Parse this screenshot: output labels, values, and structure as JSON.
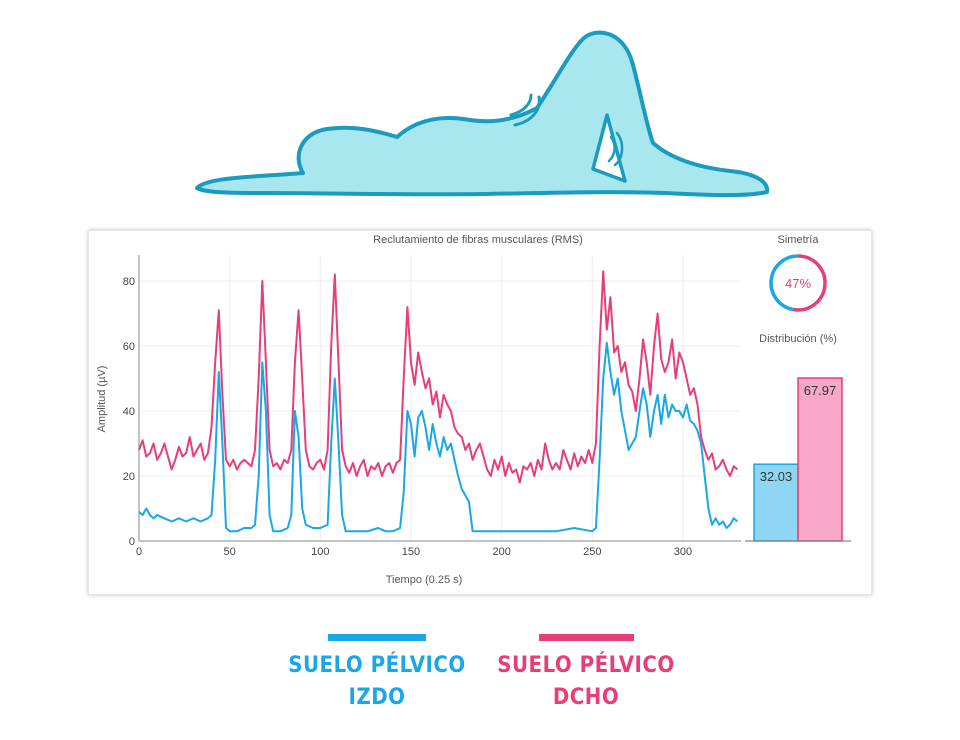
{
  "colors": {
    "left": "#1aa7e8",
    "right": "#e83e78",
    "body_fill": "#a9e7ef",
    "body_stroke": "#1a9bbf",
    "bar_left_fill": "#8fd6f5",
    "bar_right_fill": "#f7a8c6"
  },
  "legend": {
    "left": {
      "line1": "SUELO PÉLVICO",
      "line2": "IZDO"
    },
    "right": {
      "line1": "SUELO PÉLVICO",
      "line2": "DCHO"
    }
  },
  "chart_data": [
    {
      "type": "line",
      "title": "Reclutamiento de fibras musculares (RMS)",
      "xlabel": "Tiempo (0.25 s)",
      "ylabel": "Amplitud (µV)",
      "xlim": [
        0,
        332
      ],
      "ylim": [
        0,
        88
      ],
      "xticks": [
        0,
        50,
        100,
        150,
        200,
        250,
        300
      ],
      "yticks": [
        0,
        20,
        40,
        60,
        80
      ],
      "series": [
        {
          "name": "SUELO PÉLVICO IZDO",
          "color": "#1aa7e8",
          "points": [
            [
              0,
              9
            ],
            [
              2,
              8
            ],
            [
              4,
              10
            ],
            [
              6,
              8
            ],
            [
              8,
              7
            ],
            [
              10,
              8
            ],
            [
              14,
              7
            ],
            [
              18,
              6
            ],
            [
              22,
              7
            ],
            [
              26,
              6
            ],
            [
              30,
              7
            ],
            [
              34,
              6
            ],
            [
              38,
              7
            ],
            [
              40,
              8
            ],
            [
              42,
              25
            ],
            [
              44,
              52
            ],
            [
              46,
              30
            ],
            [
              48,
              4
            ],
            [
              50,
              3
            ],
            [
              54,
              3
            ],
            [
              58,
              4
            ],
            [
              62,
              4
            ],
            [
              64,
              5
            ],
            [
              66,
              20
            ],
            [
              68,
              55
            ],
            [
              70,
              40
            ],
            [
              72,
              8
            ],
            [
              74,
              3
            ],
            [
              78,
              3
            ],
            [
              82,
              4
            ],
            [
              84,
              8
            ],
            [
              86,
              40
            ],
            [
              88,
              32
            ],
            [
              90,
              10
            ],
            [
              92,
              5
            ],
            [
              96,
              4
            ],
            [
              100,
              4
            ],
            [
              104,
              5
            ],
            [
              106,
              30
            ],
            [
              108,
              50
            ],
            [
              110,
              30
            ],
            [
              112,
              8
            ],
            [
              114,
              3
            ],
            [
              120,
              3
            ],
            [
              126,
              3
            ],
            [
              132,
              4
            ],
            [
              136,
              3
            ],
            [
              140,
              3
            ],
            [
              144,
              4
            ],
            [
              146,
              15
            ],
            [
              148,
              40
            ],
            [
              150,
              36
            ],
            [
              152,
              26
            ],
            [
              154,
              38
            ],
            [
              156,
              40
            ],
            [
              158,
              35
            ],
            [
              160,
              28
            ],
            [
              162,
              36
            ],
            [
              164,
              30
            ],
            [
              166,
              26
            ],
            [
              168,
              32
            ],
            [
              170,
              28
            ],
            [
              172,
              30
            ],
            [
              174,
              25
            ],
            [
              176,
              20
            ],
            [
              178,
              16
            ],
            [
              180,
              14
            ],
            [
              182,
              12
            ],
            [
              184,
              3
            ],
            [
              190,
              3
            ],
            [
              200,
              3
            ],
            [
              210,
              3
            ],
            [
              220,
              3
            ],
            [
              230,
              3
            ],
            [
              240,
              4
            ],
            [
              250,
              3
            ],
            [
              252,
              4
            ],
            [
              254,
              25
            ],
            [
              256,
              50
            ],
            [
              258,
              61
            ],
            [
              260,
              52
            ],
            [
              262,
              45
            ],
            [
              264,
              50
            ],
            [
              266,
              40
            ],
            [
              268,
              34
            ],
            [
              270,
              28
            ],
            [
              272,
              30
            ],
            [
              274,
              32
            ],
            [
              276,
              40
            ],
            [
              278,
              47
            ],
            [
              280,
              42
            ],
            [
              282,
              32
            ],
            [
              284,
              40
            ],
            [
              286,
              45
            ],
            [
              288,
              36
            ],
            [
              290,
              45
            ],
            [
              292,
              38
            ],
            [
              294,
              42
            ],
            [
              296,
              40
            ],
            [
              298,
              40
            ],
            [
              300,
              38
            ],
            [
              302,
              42
            ],
            [
              304,
              37
            ],
            [
              306,
              36
            ],
            [
              308,
              34
            ],
            [
              310,
              30
            ],
            [
              312,
              20
            ],
            [
              314,
              10
            ],
            [
              316,
              5
            ],
            [
              318,
              7
            ],
            [
              320,
              5
            ],
            [
              322,
              6
            ],
            [
              324,
              4
            ],
            [
              326,
              5
            ],
            [
              328,
              7
            ],
            [
              330,
              6
            ]
          ]
        },
        {
          "name": "SUELO PÉLVICO DCHO",
          "color": "#e83e78",
          "points": [
            [
              0,
              28
            ],
            [
              2,
              31
            ],
            [
              4,
              26
            ],
            [
              6,
              27
            ],
            [
              8,
              30
            ],
            [
              10,
              25
            ],
            [
              12,
              27
            ],
            [
              14,
              30
            ],
            [
              16,
              26
            ],
            [
              18,
              22
            ],
            [
              20,
              25
            ],
            [
              22,
              29
            ],
            [
              24,
              26
            ],
            [
              26,
              27
            ],
            [
              28,
              32
            ],
            [
              30,
              26
            ],
            [
              32,
              28
            ],
            [
              34,
              30
            ],
            [
              36,
              25
            ],
            [
              38,
              27
            ],
            [
              40,
              35
            ],
            [
              42,
              55
            ],
            [
              44,
              71
            ],
            [
              46,
              45
            ],
            [
              48,
              25
            ],
            [
              50,
              23
            ],
            [
              52,
              25
            ],
            [
              54,
              22
            ],
            [
              56,
              24
            ],
            [
              58,
              25
            ],
            [
              60,
              24
            ],
            [
              62,
              23
            ],
            [
              64,
              28
            ],
            [
              66,
              50
            ],
            [
              68,
              80
            ],
            [
              70,
              55
            ],
            [
              72,
              28
            ],
            [
              74,
              23
            ],
            [
              76,
              24
            ],
            [
              78,
              22
            ],
            [
              80,
              25
            ],
            [
              82,
              24
            ],
            [
              84,
              28
            ],
            [
              86,
              55
            ],
            [
              88,
              71
            ],
            [
              90,
              50
            ],
            [
              92,
              28
            ],
            [
              94,
              23
            ],
            [
              96,
              22
            ],
            [
              98,
              24
            ],
            [
              100,
              25
            ],
            [
              102,
              22
            ],
            [
              104,
              28
            ],
            [
              106,
              60
            ],
            [
              108,
              82
            ],
            [
              110,
              55
            ],
            [
              112,
              28
            ],
            [
              114,
              23
            ],
            [
              116,
              21
            ],
            [
              118,
              24
            ],
            [
              120,
              20
            ],
            [
              122,
              23
            ],
            [
              124,
              25
            ],
            [
              126,
              20
            ],
            [
              128,
              23
            ],
            [
              130,
              22
            ],
            [
              132,
              24
            ],
            [
              134,
              20
            ],
            [
              136,
              23
            ],
            [
              138,
              24
            ],
            [
              140,
              21
            ],
            [
              142,
              24
            ],
            [
              144,
              25
            ],
            [
              146,
              50
            ],
            [
              148,
              72
            ],
            [
              150,
              55
            ],
            [
              152,
              48
            ],
            [
              154,
              58
            ],
            [
              156,
              52
            ],
            [
              158,
              47
            ],
            [
              160,
              50
            ],
            [
              162,
              42
            ],
            [
              164,
              46
            ],
            [
              166,
              38
            ],
            [
              168,
              45
            ],
            [
              170,
              42
            ],
            [
              172,
              40
            ],
            [
              174,
              35
            ],
            [
              176,
              33
            ],
            [
              178,
              32
            ],
            [
              180,
              28
            ],
            [
              182,
              30
            ],
            [
              184,
              25
            ],
            [
              186,
              28
            ],
            [
              188,
              30
            ],
            [
              190,
              26
            ],
            [
              192,
              22
            ],
            [
              194,
              20
            ],
            [
              196,
              25
            ],
            [
              198,
              22
            ],
            [
              200,
              26
            ],
            [
              202,
              20
            ],
            [
              204,
              24
            ],
            [
              206,
              21
            ],
            [
              208,
              22
            ],
            [
              210,
              18
            ],
            [
              212,
              23
            ],
            [
              214,
              22
            ],
            [
              216,
              24
            ],
            [
              218,
              20
            ],
            [
              220,
              25
            ],
            [
              222,
              22
            ],
            [
              224,
              30
            ],
            [
              226,
              25
            ],
            [
              228,
              22
            ],
            [
              230,
              24
            ],
            [
              232,
              22
            ],
            [
              234,
              28
            ],
            [
              236,
              25
            ],
            [
              238,
              22
            ],
            [
              240,
              27
            ],
            [
              242,
              23
            ],
            [
              244,
              26
            ],
            [
              246,
              24
            ],
            [
              248,
              28
            ],
            [
              250,
              24
            ],
            [
              252,
              30
            ],
            [
              254,
              60
            ],
            [
              256,
              83
            ],
            [
              258,
              65
            ],
            [
              260,
              75
            ],
            [
              262,
              58
            ],
            [
              264,
              60
            ],
            [
              266,
              52
            ],
            [
              268,
              55
            ],
            [
              270,
              48
            ],
            [
              272,
              46
            ],
            [
              274,
              40
            ],
            [
              276,
              50
            ],
            [
              278,
              62
            ],
            [
              280,
              55
            ],
            [
              282,
              45
            ],
            [
              284,
              60
            ],
            [
              286,
              70
            ],
            [
              288,
              56
            ],
            [
              290,
              52
            ],
            [
              292,
              55
            ],
            [
              294,
              62
            ],
            [
              296,
              50
            ],
            [
              298,
              58
            ],
            [
              300,
              55
            ],
            [
              302,
              50
            ],
            [
              304,
              45
            ],
            [
              306,
              47
            ],
            [
              308,
              42
            ],
            [
              310,
              32
            ],
            [
              312,
              28
            ],
            [
              314,
              25
            ],
            [
              316,
              27
            ],
            [
              318,
              22
            ],
            [
              320,
              23
            ],
            [
              322,
              25
            ],
            [
              324,
              22
            ],
            [
              326,
              20
            ],
            [
              328,
              23
            ],
            [
              330,
              22
            ]
          ]
        }
      ]
    },
    {
      "type": "gauge",
      "title": "Simetría",
      "value": 47,
      "label": "47%"
    },
    {
      "type": "bar",
      "title": "Distribución (%)",
      "categories": [
        "IZDO",
        "DCHO"
      ],
      "values": [
        32.03,
        67.97
      ],
      "labels": [
        "32.03",
        "67.97"
      ],
      "ylim": [
        0,
        100
      ]
    }
  ]
}
